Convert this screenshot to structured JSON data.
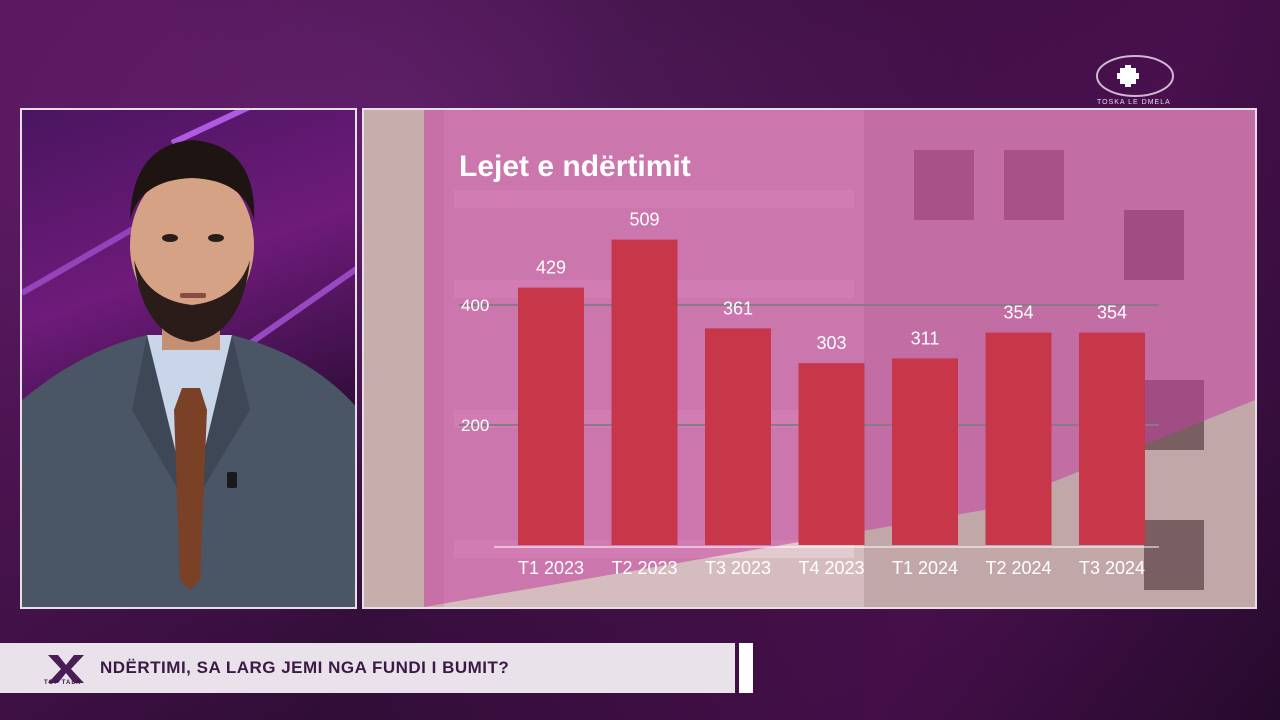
{
  "ticker": {
    "headline": "NDËRTIMI, SA LARG JEMI NGA FUNDI I BUMIT?",
    "logo_caption": "TOP TALK"
  },
  "channel": {
    "logo_caption": "TOSKA LE DMELA"
  },
  "colors": {
    "bar": "#c8364a",
    "ticker_bg": "#e9e2ea",
    "frame": "#e6dfe8"
  },
  "chart_data": {
    "type": "bar",
    "title": "Lejet e ndërtimit",
    "categories": [
      "T1 2023",
      "T2 2023",
      "T3 2023",
      "T4 2023",
      "T1 2024",
      "T2 2024",
      "T3 2024"
    ],
    "values": [
      429,
      509,
      361,
      303,
      311,
      354,
      354
    ],
    "yticks": [
      200,
      400
    ],
    "ylim": [
      0,
      509
    ],
    "grid": true,
    "xlabel": "",
    "ylabel": ""
  }
}
